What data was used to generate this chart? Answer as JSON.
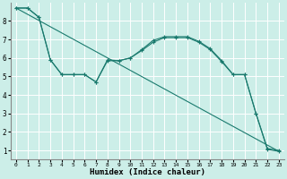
{
  "xlabel": "Humidex (Indice chaleur)",
  "bg_color": "#cceee8",
  "grid_color": "#ffffff",
  "line_color": "#1a7a6e",
  "xlim": [
    -0.5,
    23.5
  ],
  "ylim": [
    0.5,
    9.0
  ],
  "xticks": [
    0,
    1,
    2,
    3,
    4,
    5,
    6,
    7,
    8,
    9,
    10,
    11,
    12,
    13,
    14,
    15,
    16,
    17,
    18,
    19,
    20,
    21,
    22,
    23
  ],
  "yticks": [
    1,
    2,
    3,
    4,
    5,
    6,
    7,
    8
  ],
  "line1_x": [
    0,
    1,
    2,
    3,
    4,
    5,
    6,
    7,
    8,
    9,
    10,
    11,
    12,
    13,
    14,
    15,
    16,
    17,
    18,
    19,
    20,
    21,
    22,
    23
  ],
  "line1_y": [
    8.7,
    8.7,
    8.2,
    5.9,
    5.1,
    5.1,
    5.1,
    4.7,
    5.9,
    5.85,
    6.0,
    6.45,
    6.95,
    7.15,
    7.15,
    7.15,
    6.9,
    6.5,
    5.85,
    5.1,
    5.1,
    3.0,
    1.1,
    1.0
  ],
  "line2_x": [
    0,
    1,
    2,
    3,
    4,
    5,
    6,
    7,
    8,
    9,
    10,
    11,
    12,
    13,
    14,
    15,
    16,
    17,
    18,
    19,
    20,
    21,
    22,
    23
  ],
  "line2_y": [
    8.7,
    8.7,
    8.2,
    5.9,
    5.1,
    5.1,
    5.1,
    4.7,
    5.85,
    5.85,
    6.0,
    6.4,
    6.85,
    7.1,
    7.1,
    7.1,
    6.85,
    6.45,
    5.8,
    5.1,
    5.1,
    3.0,
    1.05,
    0.95
  ],
  "line3_x": [
    0,
    23
  ],
  "line3_y": [
    8.7,
    0.95
  ]
}
